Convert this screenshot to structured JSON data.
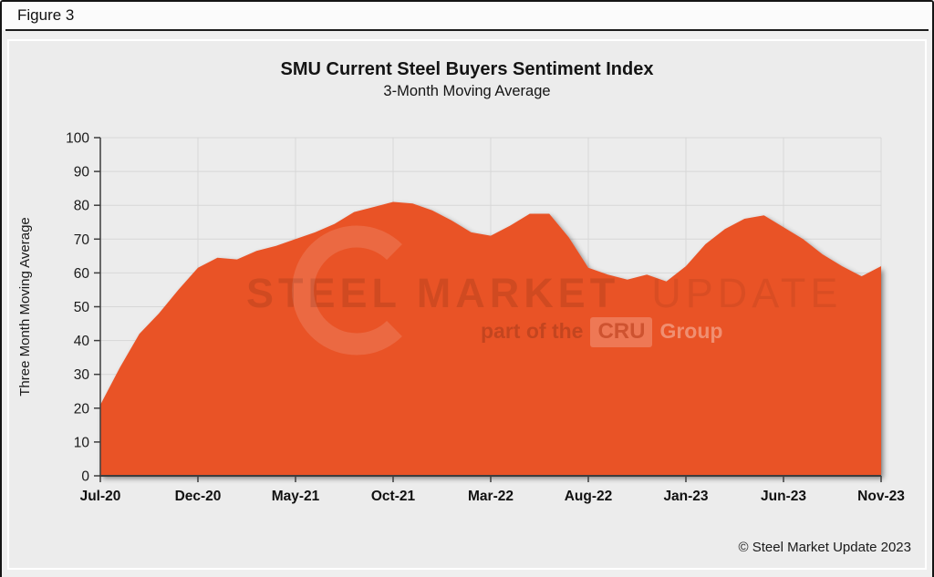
{
  "figure_label": "Figure 3",
  "chart_data": {
    "type": "area",
    "title": "SMU Current Steel Buyers Sentiment Index",
    "subtitle": "3-Month Moving Average",
    "ylabel": "Three Month Moving Average",
    "ylim": [
      0,
      100
    ],
    "ytick_step": 10,
    "grid": true,
    "legend": "none",
    "fill_color": "#e95228",
    "grid_color": "#d7d7d7",
    "axis_color": "#3d3d3d",
    "categories": [
      "Jul-20",
      "Aug-20",
      "Sep-20",
      "Oct-20",
      "Nov-20",
      "Dec-20",
      "Jan-21",
      "Feb-21",
      "Mar-21",
      "Apr-21",
      "May-21",
      "Jun-21",
      "Jul-21",
      "Aug-21",
      "Sep-21",
      "Oct-21",
      "Nov-21",
      "Dec-21",
      "Jan-22",
      "Feb-22",
      "Mar-22",
      "Apr-22",
      "May-22",
      "Jun-22",
      "Jul-22",
      "Aug-22",
      "Sep-22",
      "Oct-22",
      "Nov-22",
      "Dec-22",
      "Jan-23",
      "Feb-23",
      "Mar-23",
      "Apr-23",
      "May-23",
      "Jun-23",
      "Jul-23",
      "Aug-23",
      "Sep-23",
      "Oct-23",
      "Nov-23"
    ],
    "values": [
      21,
      32,
      42,
      48,
      55,
      61.5,
      64.5,
      64,
      66.5,
      68,
      70,
      72,
      74.5,
      78,
      79.5,
      81,
      80.5,
      78.5,
      75.5,
      72,
      71,
      74,
      77.5,
      77.5,
      70.5,
      61.5,
      59.5,
      58,
      59.5,
      57.5,
      62,
      68.5,
      73,
      76,
      77,
      73.5,
      70,
      65.5,
      62,
      59,
      62
    ],
    "xtick_labels": [
      "Jul-20",
      "Dec-20",
      "May-21",
      "Oct-21",
      "Mar-22",
      "Aug-22",
      "Jan-23",
      "Jun-23",
      "Nov-23"
    ],
    "xtick_interval": 5
  },
  "watermark": {
    "logo_icon": "crescent-icon",
    "brand_bold": "STEEL MARKET",
    "brand_light": "UPDATE",
    "tagline_prefix": "part of the",
    "tagline_badge": "CRU",
    "tagline_suffix": "Group"
  },
  "footer": {
    "copyright": "© Steel Market Update 2023"
  }
}
